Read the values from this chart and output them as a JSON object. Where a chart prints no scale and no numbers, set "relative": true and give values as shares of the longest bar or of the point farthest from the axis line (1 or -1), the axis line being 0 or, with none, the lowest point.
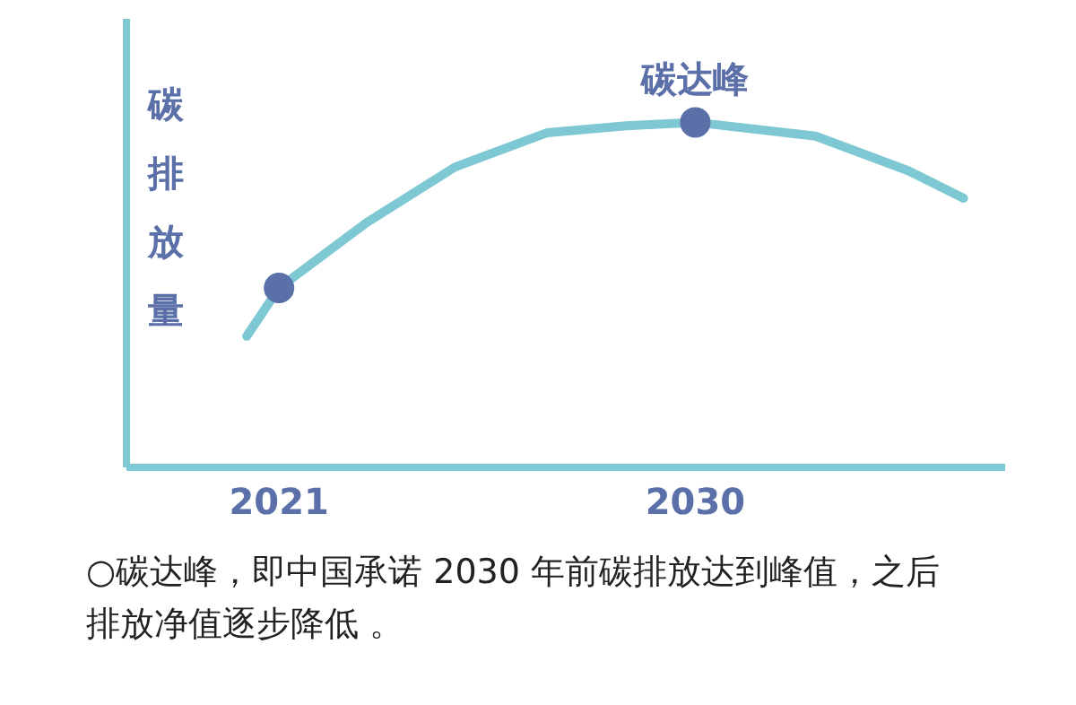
{
  "chart_data": {
    "type": "line",
    "relative": true,
    "ylabel": "碳排放量",
    "xlim": [
      2017.7,
      2036.7
    ],
    "xticks": [
      2021,
      2030
    ],
    "grid": false,
    "series": [
      {
        "color": "#7ec8d3",
        "marker": "none",
        "x": [
          2020.3,
          2021,
          2022.9,
          2024.8,
          2026.8,
          2028.5,
          2030,
          2032.6,
          2034.6,
          2035.8
        ],
        "values": [
          0.38,
          0.52,
          0.71,
          0.87,
          0.97,
          0.99,
          1,
          0.96,
          0.86,
          0.78
        ]
      },
      {
        "type": "scatter",
        "color": "#5b6fa8",
        "marker": "circle",
        "x": [
          2021,
          2030
        ],
        "values": [
          0.52,
          1
        ]
      }
    ],
    "annotations": [
      {
        "text": "碳达峰",
        "x": 2030,
        "y": 1
      },
      "○碳达峰，即中国承诺 2030 年前碳排放达到峰值，之后排放净值逐步降低 。"
    ]
  }
}
